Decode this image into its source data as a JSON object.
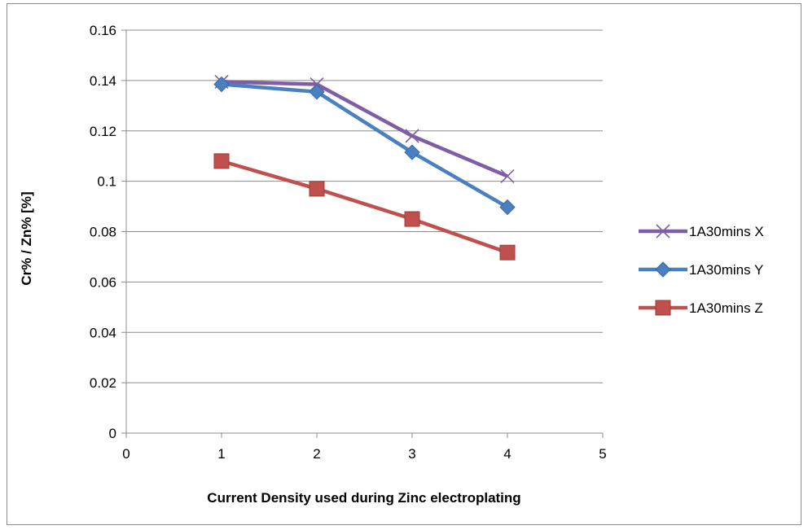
{
  "chart_data": {
    "type": "line",
    "title": "",
    "xlabel": "Current Density used during Zinc electroplating",
    "ylabel": "Cr% / Zn%  [%]",
    "xlim": [
      0,
      5
    ],
    "ylim": [
      0,
      0.16
    ],
    "x_ticks": [
      "0",
      "1",
      "2",
      "3",
      "4",
      "5"
    ],
    "y_ticks": [
      "0",
      "0.02",
      "0.04",
      "0.06",
      "0.08",
      "0.1",
      "0.12",
      "0.14",
      "0.16"
    ],
    "grid": "horizontal",
    "legend_position": "right",
    "x": [
      1,
      2,
      3,
      4
    ],
    "series": [
      {
        "name": "1A30mins X",
        "values": [
          0.1395,
          0.1385,
          0.118,
          0.102
        ],
        "color": "#7f5ea6",
        "marker": "x"
      },
      {
        "name": "1A30mins Y",
        "values": [
          0.1385,
          0.1355,
          0.1115,
          0.0897
        ],
        "color": "#4a7fc0",
        "marker": "diamond"
      },
      {
        "name": "1A30mins Z",
        "values": [
          0.108,
          0.097,
          0.085,
          0.0717
        ],
        "color": "#c0504d",
        "marker": "square"
      }
    ]
  }
}
